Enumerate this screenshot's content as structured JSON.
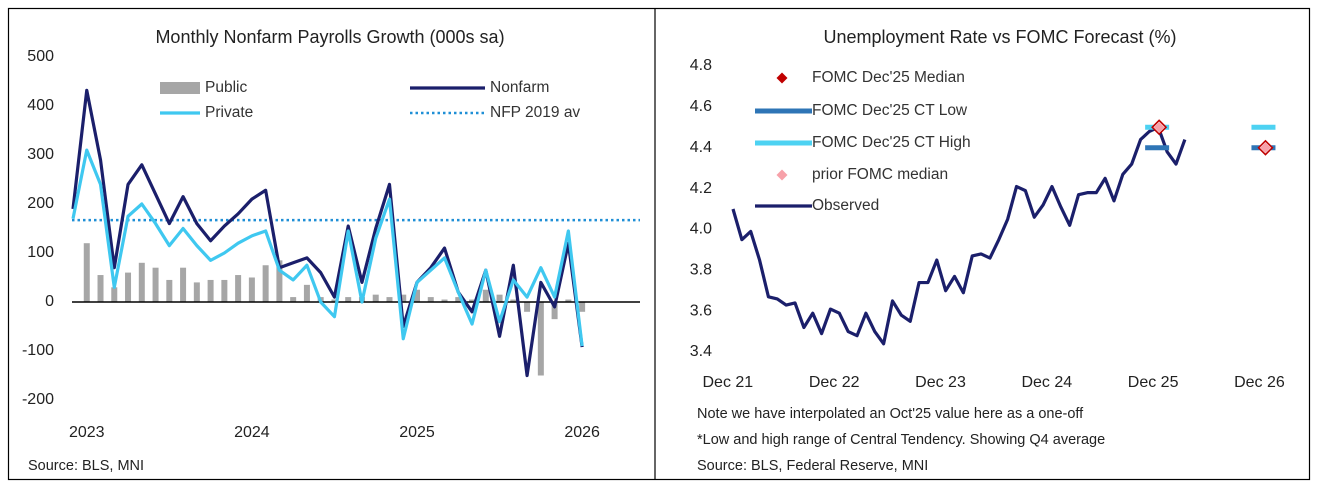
{
  "chart_data": [
    {
      "type": "combo",
      "title": "Monthly Nonfarm Payrolls Growth (000s sa)",
      "source": "Source: BLS, MNI",
      "categories": [
        null,
        "2023",
        null,
        null,
        null,
        null,
        null,
        null,
        null,
        null,
        null,
        null,
        null,
        "2024",
        null,
        null,
        null,
        null,
        null,
        null,
        null,
        null,
        null,
        null,
        null,
        "2025",
        null,
        null,
        null,
        null,
        null,
        null,
        null,
        null,
        null,
        null,
        null,
        "2026"
      ],
      "ylim": [
        -200,
        500
      ],
      "yticks": [
        -200,
        -100,
        0,
        100,
        200,
        300,
        400,
        500
      ],
      "series": [
        {
          "name": "Public",
          "style": "bar",
          "color": "#a6a6a6",
          "values": [
            null,
            120,
            55,
            30,
            60,
            80,
            70,
            45,
            70,
            40,
            45,
            45,
            55,
            50,
            75,
            85,
            10,
            35,
            10,
            5,
            10,
            10,
            15,
            10,
            15,
            25,
            10,
            5,
            10,
            5,
            25,
            15,
            5,
            -20,
            -150,
            -35,
            5,
            -20
          ]
        },
        {
          "name": "Nonfarm",
          "style": "line",
          "color": "#1b1f6b",
          "values": [
            190,
            432,
            290,
            70,
            240,
            280,
            220,
            160,
            215,
            160,
            125,
            155,
            180,
            210,
            228,
            70,
            80,
            90,
            60,
            10,
            155,
            40,
            150,
            240,
            -50,
            40,
            70,
            110,
            20,
            -20,
            65,
            -70,
            75,
            -150,
            40,
            -10,
            120,
            -92
          ]
        },
        {
          "name": "Private",
          "style": "line",
          "color": "#3fc8f0",
          "values": [
            170,
            310,
            240,
            30,
            175,
            200,
            160,
            115,
            150,
            115,
            85,
            100,
            120,
            135,
            145,
            65,
            45,
            75,
            0,
            -30,
            145,
            0,
            130,
            210,
            -75,
            40,
            65,
            90,
            20,
            -45,
            65,
            -40,
            45,
            10,
            70,
            10,
            145,
            -90
          ]
        }
      ],
      "reference": {
        "name": "NFP 2019 av",
        "value": 167,
        "color": "#1f8fd6"
      }
    },
    {
      "type": "line",
      "title": "Unemployment Rate vs FOMC Forecast (%)",
      "notes": [
        "Note we have interpolated an Oct'25 value here as a one-off",
        "*Low and high range of Central Tendency. Showing Q4 average",
        "Source: BLS, Federal Reserve, MNI"
      ],
      "categories": [
        null,
        "Dec 21",
        null,
        null,
        null,
        null,
        null,
        null,
        null,
        null,
        null,
        null,
        null,
        "Dec 22",
        null,
        null,
        null,
        null,
        null,
        null,
        null,
        null,
        null,
        null,
        null,
        "Dec 23",
        null,
        null,
        null,
        null,
        null,
        null,
        null,
        null,
        null,
        null,
        null,
        "Dec 24",
        null,
        null,
        null,
        null,
        null,
        null,
        null,
        null,
        null,
        null,
        null,
        "Dec 25",
        null,
        null,
        null,
        null,
        null,
        null,
        null,
        null,
        null,
        null,
        null,
        "Dec 26"
      ],
      "ylim": [
        3.4,
        4.8
      ],
      "yticks": [
        3.4,
        3.6,
        3.8,
        {
          "value": 4,
          "label": "4.0"
        },
        4.2,
        4.4,
        4.6,
        4.8
      ],
      "series": [
        {
          "name": "FOMC Dec'25 Median",
          "style": "diamond",
          "color": "#c00000",
          "values": [
            null,
            null,
            null,
            null,
            null,
            null,
            null,
            null,
            null,
            null,
            null,
            null,
            null,
            null,
            null,
            null,
            null,
            null,
            null,
            null,
            null,
            null,
            null,
            null,
            null,
            null,
            null,
            null,
            null,
            null,
            null,
            null,
            null,
            null,
            null,
            null,
            null,
            null,
            null,
            null,
            null,
            null,
            null,
            null,
            null,
            null,
            null,
            null,
            null,
            4.5,
            null,
            null,
            null,
            null,
            null,
            null,
            null,
            null,
            null,
            null,
            null,
            4.4
          ]
        },
        {
          "name": "FOMC Dec'25 CT Low",
          "style": "dash",
          "color": "#2e75b6",
          "values": [
            null,
            null,
            null,
            null,
            null,
            null,
            null,
            null,
            null,
            null,
            null,
            null,
            null,
            null,
            null,
            null,
            null,
            null,
            null,
            null,
            null,
            null,
            null,
            null,
            null,
            null,
            null,
            null,
            null,
            null,
            null,
            null,
            null,
            null,
            null,
            null,
            null,
            null,
            null,
            null,
            null,
            null,
            null,
            null,
            null,
            null,
            null,
            null,
            null,
            4.4,
            null,
            null,
            null,
            null,
            null,
            null,
            null,
            null,
            null,
            null,
            null,
            4.4
          ]
        },
        {
          "name": "FOMC Dec'25 CT High",
          "style": "dash",
          "color": "#4dd2f2",
          "values": [
            null,
            null,
            null,
            null,
            null,
            null,
            null,
            null,
            null,
            null,
            null,
            null,
            null,
            null,
            null,
            null,
            null,
            null,
            null,
            null,
            null,
            null,
            null,
            null,
            null,
            null,
            null,
            null,
            null,
            null,
            null,
            null,
            null,
            null,
            null,
            null,
            null,
            null,
            null,
            null,
            null,
            null,
            null,
            null,
            null,
            null,
            null,
            null,
            null,
            4.5,
            null,
            null,
            null,
            null,
            null,
            null,
            null,
            null,
            null,
            null,
            null,
            4.5
          ]
        },
        {
          "name": "prior FOMC median",
          "style": "diamond",
          "color": "#f7a1a9",
          "values": [
            null,
            null,
            null,
            null,
            null,
            null,
            null,
            null,
            null,
            null,
            null,
            null,
            null,
            null,
            null,
            null,
            null,
            null,
            null,
            null,
            null,
            null,
            null,
            null,
            null,
            null,
            null,
            null,
            null,
            null,
            null,
            null,
            null,
            null,
            null,
            null,
            null,
            null,
            null,
            null,
            null,
            null,
            null,
            null,
            null,
            null,
            null,
            null,
            null,
            4.5,
            null,
            null,
            null,
            null,
            null,
            null,
            null,
            null,
            null,
            null,
            null,
            4.4
          ]
        },
        {
          "name": "Observed",
          "style": "line",
          "color": "#1b1f6b",
          "values": [
            4.1,
            3.95,
            3.99,
            3.85,
            3.67,
            3.66,
            3.63,
            3.64,
            3.52,
            3.59,
            3.49,
            3.61,
            3.59,
            3.5,
            3.48,
            3.59,
            3.5,
            3.44,
            3.65,
            3.58,
            3.55,
            3.74,
            3.74,
            3.85,
            3.7,
            3.77,
            3.69,
            3.87,
            3.88,
            3.86,
            3.95,
            4.05,
            4.21,
            4.19,
            4.06,
            4.12,
            4.21,
            4.11,
            4.02,
            4.17,
            4.18,
            4.18,
            4.25,
            4.14,
            4.27,
            4.32,
            4.44,
            4.48,
            4.5,
            4.38,
            4.32,
            4.44,
            null,
            null,
            null,
            null,
            null,
            null,
            null,
            null,
            null,
            null
          ]
        }
      ]
    }
  ]
}
